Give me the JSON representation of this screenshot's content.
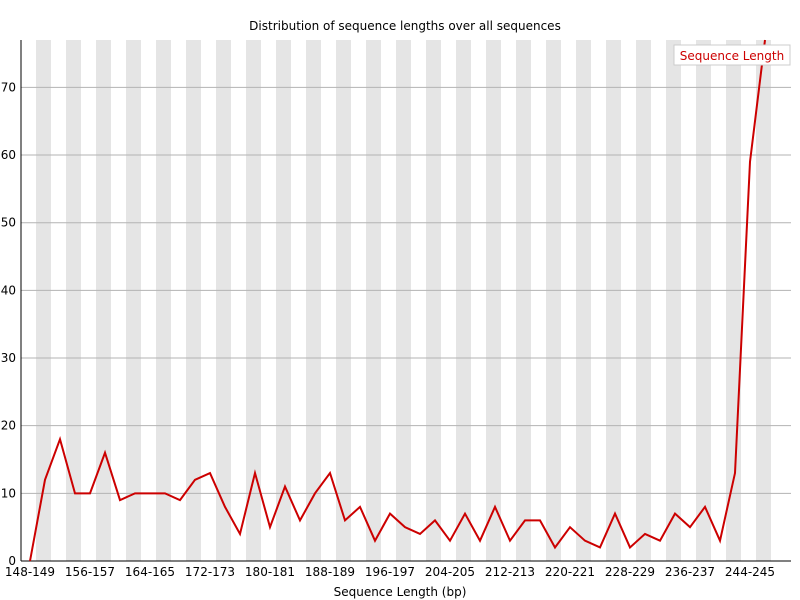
{
  "chart_data": {
    "type": "line",
    "title": "Distribution of sequence lengths over all sequences",
    "xlabel": "Sequence Length (bp)",
    "ylabel": "",
    "x_labeled_ticks": [
      "148-149",
      "156-157",
      "164-165",
      "172-173",
      "180-181",
      "188-189",
      "196-197",
      "204-205",
      "212-213",
      "220-221",
      "228-229",
      "236-237",
      "244-245"
    ],
    "y_ticks": [
      0,
      10,
      20,
      30,
      40,
      50,
      60,
      70
    ],
    "ylim": [
      0,
      77
    ],
    "grid": "horizontal",
    "legend": "top-right",
    "series": [
      {
        "name": "Sequence Length",
        "color": "#cc0000",
        "values": [
          0,
          12,
          18,
          10,
          10,
          16,
          9,
          10,
          10,
          10,
          9,
          12,
          13,
          8,
          4,
          13,
          5,
          11,
          6,
          10,
          13,
          6,
          8,
          3,
          7,
          5,
          4,
          6,
          3,
          7,
          3,
          8,
          3,
          6,
          6,
          2,
          5,
          3,
          2,
          7,
          2,
          4,
          3,
          7,
          5,
          8,
          3,
          13,
          59,
          77
        ]
      }
    ]
  }
}
